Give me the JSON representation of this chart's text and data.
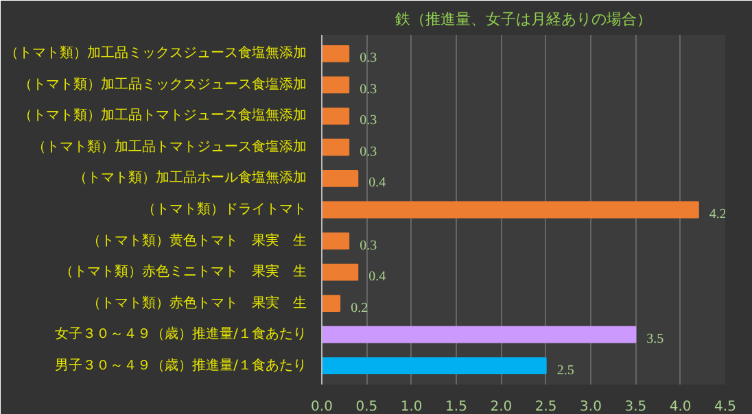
{
  "chart_data": {
    "type": "bar",
    "orientation": "horizontal",
    "title": "鉄（推進量、女子は月経ありの場合）",
    "categories": [
      "（トマト類）加工品ミックスジュース食塩無添加",
      "（トマト類）加工品ミックスジュース食塩添加",
      "（トマト類）加工品トマトジュース食塩無添加",
      "（トマト類）加工品トマトジュース食塩添加",
      "（トマト類）加工品ホール食塩無添加",
      "（トマト類）ドライトマト",
      "（トマト類）黄色トマト　果実　生",
      "（トマト類）赤色ミニトマト　果実　生",
      "（トマト類）赤色トマト　果実　生",
      "女子３０～４９（歳）推進量/１食あたり",
      "男子３０～４９（歳）推進量/１食あたり"
    ],
    "values": [
      0.3,
      0.3,
      0.3,
      0.3,
      0.4,
      4.2,
      0.3,
      0.4,
      0.2,
      3.5,
      2.5
    ],
    "colors": [
      "#ed7d31",
      "#ed7d31",
      "#ed7d31",
      "#ed7d31",
      "#ed7d31",
      "#ed7d31",
      "#ed7d31",
      "#ed7d31",
      "#ed7d31",
      "#cc99ff",
      "#00b0f0"
    ],
    "xlim": [
      0,
      4.5
    ],
    "xticks": [
      {
        "value": 0,
        "label": "0.0"
      },
      {
        "value": 0.5,
        "label": "0.5"
      },
      {
        "value": 1,
        "label": "1.0"
      },
      {
        "value": 1.5,
        "label": "1.5"
      },
      {
        "value": 2,
        "label": "2.0"
      },
      {
        "value": 2.5,
        "label": "2.5"
      },
      {
        "value": 3,
        "label": "3.0"
      },
      {
        "value": 3.5,
        "label": "3.5"
      },
      {
        "value": 4,
        "label": "4.0"
      },
      {
        "value": 4.5,
        "label": "4.5"
      }
    ],
    "grid": "x",
    "data_labels": true
  }
}
